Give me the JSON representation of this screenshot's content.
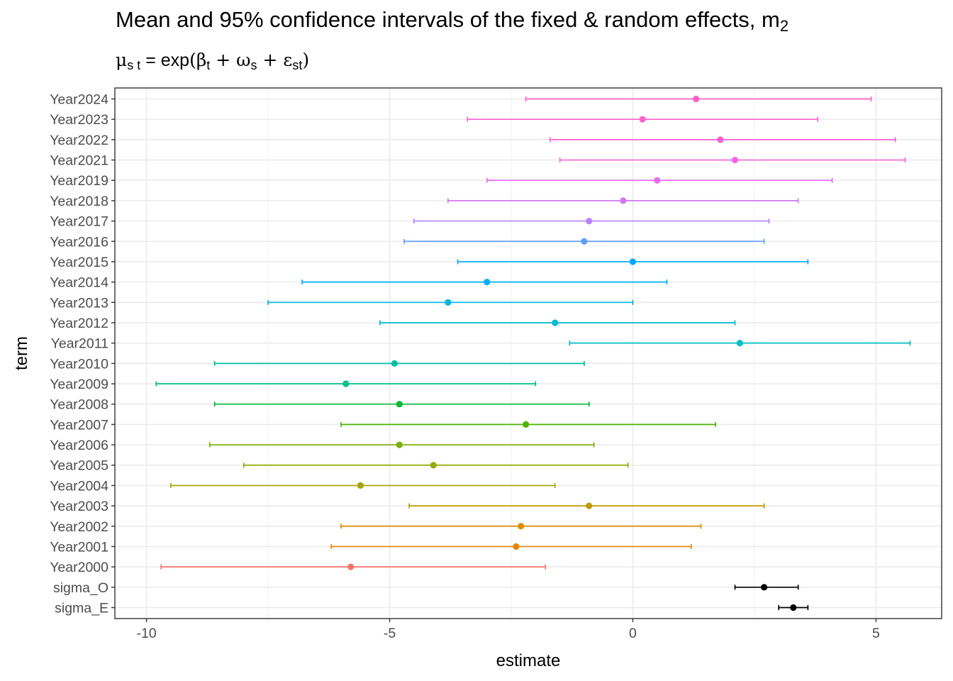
{
  "chart_data": {
    "type": "errorbar",
    "title": "Mean and 95% confidence intervals of the fixed & random effects, m",
    "title_sub": "2",
    "subtitle": {
      "mu": "μ",
      "mu_sub": "s t",
      "eq": " = exp",
      "open": "(",
      "beta": "β",
      "beta_sub": "t",
      "plus1": " + ",
      "omega": "ω",
      "omega_sub": "s",
      "plus2": " + ",
      "eps": "ε",
      "eps_sub": "st",
      "close": ")"
    },
    "xlabel": "estimate",
    "ylabel": "term",
    "xlim": [
      -10.65,
      6.35
    ],
    "x_ticks": [
      -10,
      -5,
      0,
      5
    ],
    "x_tick_labels": [
      "-10",
      "-5",
      "0",
      "5"
    ],
    "grid": true,
    "legend": "none",
    "terms": [
      {
        "term": "Year2024",
        "estimate": 1.3,
        "low": -2.2,
        "high": 4.9,
        "color": "#FF61C3"
      },
      {
        "term": "Year2023",
        "estimate": 0.2,
        "low": -3.4,
        "high": 3.8,
        "color": "#FF61C9"
      },
      {
        "term": "Year2022",
        "estimate": 1.8,
        "low": -1.7,
        "high": 5.4,
        "color": "#FC61D5"
      },
      {
        "term": "Year2021",
        "estimate": 2.1,
        "low": -1.5,
        "high": 5.6,
        "color": "#F564E3"
      },
      {
        "term": "Year2019",
        "estimate": 0.5,
        "low": -3.0,
        "high": 4.1,
        "color": "#E76BF3"
      },
      {
        "term": "Year2018",
        "estimate": -0.2,
        "low": -3.8,
        "high": 3.4,
        "color": "#D078F5"
      },
      {
        "term": "Year2017",
        "estimate": -0.9,
        "low": -4.5,
        "high": 2.8,
        "color": "#B983FF"
      },
      {
        "term": "Year2016",
        "estimate": -1.0,
        "low": -4.7,
        "high": 2.7,
        "color": "#619CFF"
      },
      {
        "term": "Year2015",
        "estimate": 0.0,
        "low": -3.6,
        "high": 3.6,
        "color": "#00A9FF"
      },
      {
        "term": "Year2014",
        "estimate": -3.0,
        "low": -6.8,
        "high": 0.7,
        "color": "#00B0F6"
      },
      {
        "term": "Year2013",
        "estimate": -3.8,
        "low": -7.5,
        "high": 0.0,
        "color": "#00B4E4"
      },
      {
        "term": "Year2012",
        "estimate": -1.6,
        "low": -5.2,
        "high": 2.1,
        "color": "#00BAD0"
      },
      {
        "term": "Year2011",
        "estimate": 2.2,
        "low": -1.3,
        "high": 5.7,
        "color": "#00BFC4"
      },
      {
        "term": "Year2010",
        "estimate": -4.9,
        "low": -8.6,
        "high": -1.0,
        "color": "#00BFA0"
      },
      {
        "term": "Year2009",
        "estimate": -5.9,
        "low": -9.8,
        "high": -2.0,
        "color": "#00C08B"
      },
      {
        "term": "Year2008",
        "estimate": -4.8,
        "low": -8.6,
        "high": -0.9,
        "color": "#00BA38"
      },
      {
        "term": "Year2007",
        "estimate": -2.2,
        "low": -6.0,
        "high": 1.7,
        "color": "#4DB400"
      },
      {
        "term": "Year2006",
        "estimate": -4.8,
        "low": -8.7,
        "high": -0.8,
        "color": "#7CAE00"
      },
      {
        "term": "Year2005",
        "estimate": -4.1,
        "low": -8.0,
        "high": -0.1,
        "color": "#93AA00"
      },
      {
        "term": "Year2004",
        "estimate": -5.6,
        "low": -9.5,
        "high": -1.6,
        "color": "#A3A500"
      },
      {
        "term": "Year2003",
        "estimate": -0.9,
        "low": -4.6,
        "high": 2.7,
        "color": "#C09B00"
      },
      {
        "term": "Year2002",
        "estimate": -2.3,
        "low": -6.0,
        "high": 1.4,
        "color": "#DE8C00"
      },
      {
        "term": "Year2001",
        "estimate": -2.4,
        "low": -6.2,
        "high": 1.2,
        "color": "#E58700"
      },
      {
        "term": "Year2000",
        "estimate": -5.8,
        "low": -9.7,
        "high": -1.8,
        "color": "#F8766D"
      },
      {
        "term": "sigma_O",
        "estimate": 2.7,
        "low": 2.1,
        "high": 3.4,
        "color": "#000000"
      },
      {
        "term": "sigma_E",
        "estimate": 3.3,
        "low": 3.0,
        "high": 3.6,
        "color": "#000000"
      }
    ]
  }
}
